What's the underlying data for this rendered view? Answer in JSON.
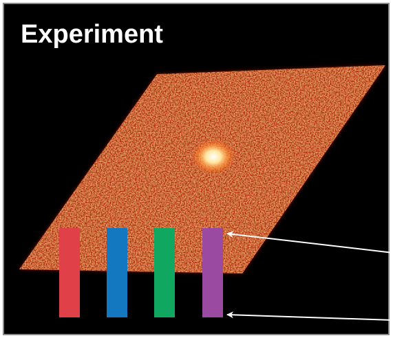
{
  "title": "Experiment"
}
